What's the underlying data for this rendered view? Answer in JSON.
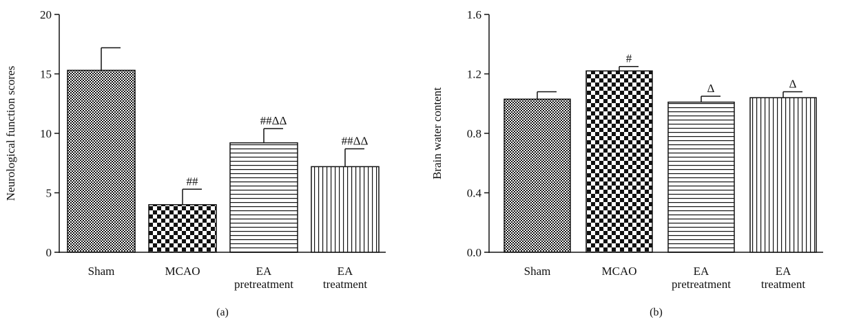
{
  "chart_data": [
    {
      "type": "bar",
      "panel_label": "(a)",
      "ylabel": "Neurological function scores",
      "ylim": [
        0,
        20
      ],
      "yticks": [
        0,
        5,
        10,
        15,
        20
      ],
      "categories": [
        [
          "Sham"
        ],
        [
          "MCAO"
        ],
        [
          "EA",
          "pretreatment"
        ],
        [
          "EA",
          "treatment"
        ]
      ],
      "values": [
        15.3,
        4.0,
        9.2,
        7.2
      ],
      "errors": [
        1.9,
        1.3,
        1.2,
        1.5
      ],
      "annotations": [
        "",
        "##",
        "##ΔΔ",
        "##ΔΔ"
      ],
      "patterns": [
        "dots",
        "checker",
        "hlines",
        "vlines"
      ],
      "grid": false
    },
    {
      "type": "bar",
      "panel_label": "(b)",
      "ylabel": "Brain water content",
      "ylim": [
        0,
        1.6
      ],
      "yticks": [
        0.0,
        0.4,
        0.8,
        1.2,
        1.6
      ],
      "ytick_labels": [
        "0.0",
        "0.4",
        "0.8",
        "1.2",
        "1.6"
      ],
      "categories": [
        [
          "Sham"
        ],
        [
          "MCAO"
        ],
        [
          "EA",
          "pretreatment"
        ],
        [
          "EA",
          "treatment"
        ]
      ],
      "values": [
        1.03,
        1.22,
        1.01,
        1.04
      ],
      "errors": [
        0.05,
        0.03,
        0.04,
        0.04
      ],
      "annotations": [
        "",
        "#",
        "Δ",
        "Δ"
      ],
      "patterns": [
        "dots",
        "checker",
        "hlines",
        "vlines"
      ],
      "grid": false
    }
  ]
}
